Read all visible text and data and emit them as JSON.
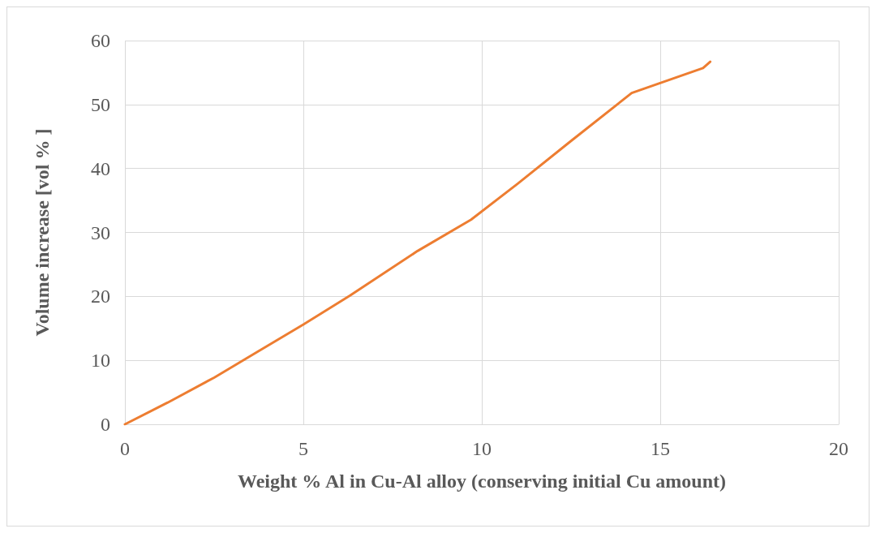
{
  "chart_data": {
    "type": "line",
    "xlabel": "Weight % Al in Cu-Al alloy (conserving initial Cu amount)",
    "ylabel": "Volume increase [vol % ]",
    "series": [
      {
        "color": "#ed7d31",
        "x": [
          0,
          1.2,
          2.5,
          3.7,
          5,
          6.3,
          8.2,
          9.7,
          11,
          12.5,
          14.2,
          16.2,
          16.4
        ],
        "values": [
          0,
          3.4,
          7.3,
          11.3,
          15.6,
          20.1,
          27.1,
          32,
          37.6,
          44.3,
          51.8,
          55.7,
          56.7
        ]
      }
    ],
    "xlim": [
      0,
      20
    ],
    "xticks": [
      0,
      5,
      10,
      15,
      20
    ],
    "ylim": [
      0,
      60
    ],
    "yticks": [
      0,
      10,
      20,
      30,
      40,
      50,
      60
    ],
    "grid": true,
    "marker": "none",
    "line_style": "solid"
  }
}
